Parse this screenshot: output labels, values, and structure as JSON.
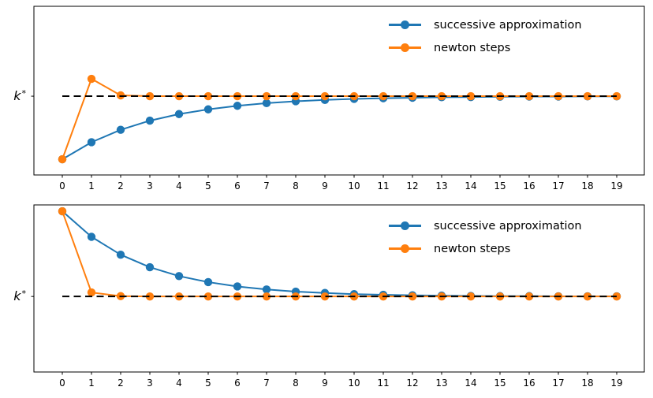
{
  "figure": {
    "background": "#ffffff",
    "axes_edge_color": "#000000",
    "tick_label_color": "#000000"
  },
  "legend": {
    "items": [
      {
        "label": "successive approximation",
        "color": "#1f77b4"
      },
      {
        "label": "newton steps",
        "color": "#ff7f0e"
      }
    ]
  },
  "chart_data": [
    {
      "type": "line",
      "title": "",
      "xlabel": "",
      "ylabel": "k*",
      "y_axis_label": {
        "base": "k",
        "sup": "*"
      },
      "x": [
        0,
        1,
        2,
        3,
        4,
        5,
        6,
        7,
        8,
        9,
        10,
        11,
        12,
        13,
        14,
        15,
        16,
        17,
        18,
        19
      ],
      "x_tick_labels": [
        "0",
        "1",
        "2",
        "3",
        "4",
        "5",
        "6",
        "7",
        "8",
        "9",
        "10",
        "11",
        "12",
        "13",
        "14",
        "15",
        "16",
        "17",
        "18",
        "19"
      ],
      "ylim": [
        0.533,
        1.533
      ],
      "legend_position": "upper right",
      "grid": false,
      "reference_line": {
        "value": 1.0,
        "label": "k*",
        "style": "dashed",
        "color": "#000000"
      },
      "series": [
        {
          "name": "successive approximation",
          "color": "#1f77b4",
          "values": [
            0.626,
            0.727,
            0.801,
            0.855,
            0.894,
            0.922,
            0.943,
            0.959,
            0.97,
            0.978,
            0.984,
            0.988,
            0.991,
            0.994,
            0.995,
            0.997,
            0.998,
            0.998,
            0.999,
            0.999
          ]
        },
        {
          "name": "newton steps",
          "color": "#ff7f0e",
          "values": [
            0.626,
            1.103,
            1.005,
            1.0,
            1.0,
            1.0,
            1.0,
            1.0,
            1.0,
            1.0,
            1.0,
            1.0,
            1.0,
            1.0,
            1.0,
            1.0,
            1.0,
            1.0,
            1.0,
            1.0
          ]
        }
      ]
    },
    {
      "type": "line",
      "title": "",
      "xlabel": "",
      "ylabel": "k*",
      "y_axis_label": {
        "base": "k",
        "sup": "*"
      },
      "x": [
        0,
        1,
        2,
        3,
        4,
        5,
        6,
        7,
        8,
        9,
        10,
        11,
        12,
        13,
        14,
        15,
        16,
        17,
        18,
        19
      ],
      "x_tick_labels": [
        "0",
        "1",
        "2",
        "3",
        "4",
        "5",
        "6",
        "7",
        "8",
        "9",
        "10",
        "11",
        "12",
        "13",
        "14",
        "15",
        "16",
        "17",
        "18",
        "19"
      ],
      "ylim": [
        0.548,
        1.548
      ],
      "legend_position": "upper right",
      "grid": false,
      "reference_line": {
        "value": 1.0,
        "label": "k*",
        "style": "dashed",
        "color": "#000000"
      },
      "series": [
        {
          "name": "successive approximation",
          "color": "#1f77b4",
          "values": [
            1.51,
            1.357,
            1.25,
            1.175,
            1.122,
            1.086,
            1.06,
            1.042,
            1.029,
            1.021,
            1.014,
            1.01,
            1.007,
            1.005,
            1.003,
            1.002,
            1.002,
            1.001,
            1.001,
            1.001
          ]
        },
        {
          "name": "newton steps",
          "color": "#ff7f0e",
          "values": [
            1.51,
            1.024,
            1.002,
            1.0,
            1.0,
            1.0,
            1.0,
            1.0,
            1.0,
            1.0,
            1.0,
            1.0,
            1.0,
            1.0,
            1.0,
            1.0,
            1.0,
            1.0,
            1.0,
            1.0
          ]
        }
      ]
    }
  ]
}
